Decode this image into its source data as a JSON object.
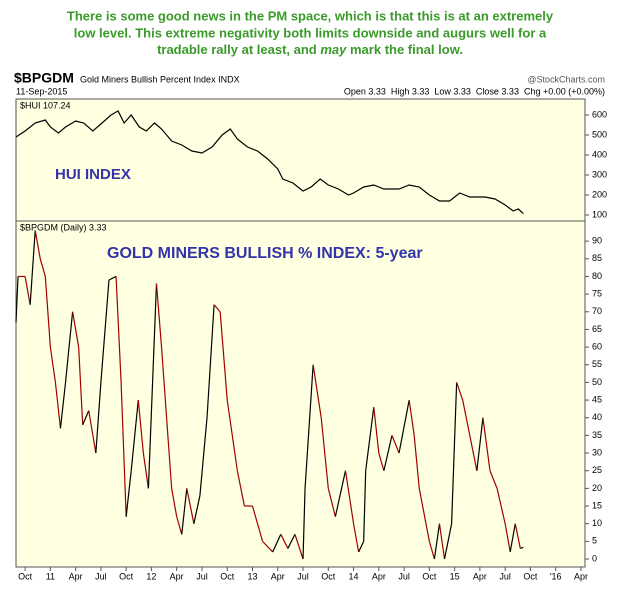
{
  "caption": [
    "There is some good news in the PM space, which is that this is at an extremely",
    "low level. This extreme negativity both limits downside and augurs well for a",
    [
      "tradable rally at least, and ",
      "may",
      " mark the final low."
    ]
  ],
  "header": {
    "symbol": "$BPGDM",
    "name": "Gold Miners Bullish Percent Index INDX",
    "source": "@StockCharts.com",
    "date": "11-Sep-2015",
    "quote": "Open 3.33  High 3.33  Low 3.33  Close 3.33  Chg +0.00 (+0.00%)"
  },
  "chart_data": [
    {
      "type": "line",
      "legend_label": "$HUI 107.24",
      "annotation": "HUI INDEX",
      "color": "#000000",
      "x": [
        2010.66,
        2010.75,
        2010.85,
        2010.95,
        2011.0,
        2011.08,
        2011.15,
        2011.25,
        2011.33,
        2011.42,
        2011.5,
        2011.6,
        2011.67,
        2011.73,
        2011.8,
        2011.88,
        2011.95,
        2012.03,
        2012.1,
        2012.2,
        2012.3,
        2012.4,
        2012.5,
        2012.6,
        2012.7,
        2012.78,
        2012.85,
        2012.95,
        2013.05,
        2013.15,
        2013.25,
        2013.3,
        2013.4,
        2013.5,
        2013.58,
        2013.67,
        2013.75,
        2013.85,
        2013.95,
        2014.0,
        2014.1,
        2014.2,
        2014.3,
        2014.45,
        2014.55,
        2014.65,
        2014.75,
        2014.85,
        2014.95,
        2015.05,
        2015.15,
        2015.3,
        2015.4,
        2015.5,
        2015.58,
        2015.63,
        2015.68
      ],
      "values": [
        490,
        520,
        560,
        575,
        540,
        510,
        540,
        570,
        560,
        520,
        555,
        600,
        620,
        560,
        600,
        540,
        520,
        560,
        530,
        470,
        450,
        420,
        410,
        440,
        500,
        530,
        480,
        440,
        420,
        380,
        330,
        280,
        260,
        220,
        240,
        280,
        250,
        230,
        200,
        210,
        240,
        250,
        230,
        230,
        250,
        240,
        200,
        170,
        170,
        210,
        190,
        190,
        180,
        150,
        120,
        130,
        107.24
      ],
      "xlim": [
        2010.66,
        2016.29
      ],
      "ylim": [
        70,
        680
      ],
      "yticks": [
        100,
        200,
        300,
        400,
        500,
        600
      ]
    },
    {
      "type": "line",
      "legend_label": "$BPGDM (Daily) 3.33",
      "annotation": "GOLD MINERS BULLISH % INDEX: 5-year",
      "color": "#a00000",
      "rising_color": "#000000",
      "x": [
        2010.66,
        2010.68,
        2010.75,
        2010.8,
        2010.85,
        2010.9,
        2010.95,
        2011.0,
        2011.05,
        2011.1,
        2011.15,
        2011.22,
        2011.28,
        2011.32,
        2011.38,
        2011.45,
        2011.5,
        2011.58,
        2011.65,
        2011.7,
        2011.75,
        2011.8,
        2011.87,
        2011.92,
        2011.97,
        2012.05,
        2012.1,
        2012.15,
        2012.2,
        2012.25,
        2012.3,
        2012.35,
        2012.42,
        2012.48,
        2012.55,
        2012.62,
        2012.68,
        2012.75,
        2012.85,
        2012.92,
        2013.0,
        2013.05,
        2013.1,
        2013.2,
        2013.28,
        2013.35,
        2013.42,
        2013.5,
        2013.52,
        2013.6,
        2013.68,
        2013.75,
        2013.82,
        2013.92,
        2014.0,
        2014.05,
        2014.1,
        2014.12,
        2014.2,
        2014.25,
        2014.3,
        2014.38,
        2014.45,
        2014.55,
        2014.6,
        2014.65,
        2014.75,
        2014.8,
        2014.85,
        2014.9,
        2014.97,
        2015.02,
        2015.08,
        2015.15,
        2015.22,
        2015.28,
        2015.35,
        2015.42,
        2015.5,
        2015.55,
        2015.6,
        2015.65,
        2015.68
      ],
      "values": [
        67,
        80,
        80,
        72,
        93,
        85,
        80,
        60,
        50,
        37,
        50,
        70,
        60,
        38,
        42,
        30,
        50,
        79,
        80,
        50,
        12,
        25,
        45,
        30,
        20,
        78,
        60,
        40,
        20,
        12,
        7,
        20,
        10,
        18,
        40,
        72,
        70,
        45,
        25,
        15,
        15,
        10,
        5,
        2,
        7,
        3,
        7,
        0,
        20,
        55,
        40,
        20,
        12,
        25,
        10,
        2,
        5,
        25,
        43,
        30,
        25,
        35,
        30,
        45,
        35,
        20,
        5,
        0,
        10,
        0,
        10,
        50,
        45,
        35,
        25,
        40,
        25,
        20,
        10,
        2,
        10,
        3,
        3.33
      ],
      "xlim": [
        2010.66,
        2016.29
      ],
      "ylim": [
        -2.26,
        95.7
      ],
      "yticks": [
        0,
        5,
        10,
        15,
        20,
        25,
        30,
        35,
        40,
        45,
        50,
        55,
        60,
        65,
        70,
        75,
        80,
        85,
        90
      ],
      "xticks": [
        {
          "value": 2010.75,
          "label": "Oct"
        },
        {
          "value": 2011,
          "label": "11"
        },
        {
          "value": 2011.25,
          "label": "Apr"
        },
        {
          "value": 2011.5,
          "label": "Jul"
        },
        {
          "value": 2011.75,
          "label": "Oct"
        },
        {
          "value": 2012,
          "label": "12"
        },
        {
          "value": 2012.25,
          "label": "Apr"
        },
        {
          "value": 2012.5,
          "label": "Jul"
        },
        {
          "value": 2012.75,
          "label": "Oct"
        },
        {
          "value": 2013,
          "label": "13"
        },
        {
          "value": 2013.25,
          "label": "Apr"
        },
        {
          "value": 2013.5,
          "label": "Jul"
        },
        {
          "value": 2013.75,
          "label": "Oct"
        },
        {
          "value": 2014,
          "label": "14"
        },
        {
          "value": 2014.25,
          "label": "Apr"
        },
        {
          "value": 2014.5,
          "label": "Jul"
        },
        {
          "value": 2014.75,
          "label": "Oct"
        },
        {
          "value": 2015,
          "label": "15"
        },
        {
          "value": 2015.25,
          "label": "Apr"
        },
        {
          "value": 2015.5,
          "label": "Jul"
        },
        {
          "value": 2015.75,
          "label": "Oct"
        },
        {
          "value": 2016,
          "label": "'16"
        },
        {
          "value": 2016.25,
          "label": "Apr"
        }
      ]
    }
  ]
}
